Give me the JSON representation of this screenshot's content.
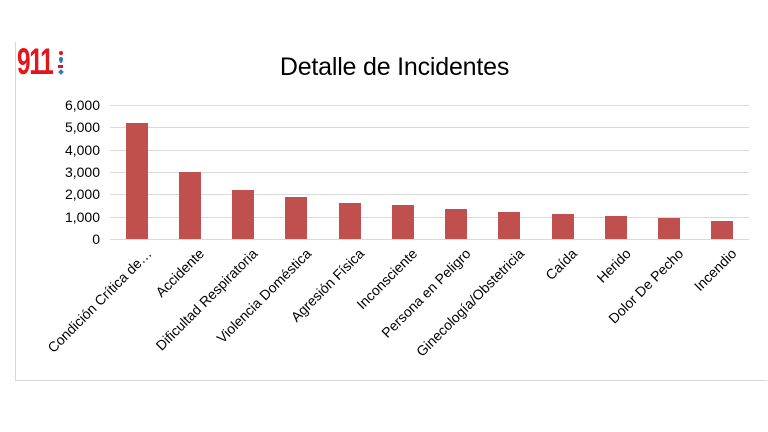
{
  "logo": {
    "text": "911",
    "color": "#e4161c",
    "icons": [
      "red-dot",
      "blue-drop",
      "red-mark",
      "blue-diamond"
    ]
  },
  "chart_data": {
    "type": "bar",
    "title": "Detalle de Incidentes",
    "categories": [
      "Condición Crítica de…",
      "Accidente",
      "Dificultad Respiratoria",
      "Violencia Doméstica",
      "Agresión Física",
      "Inconsciente",
      "Persona en Peligro",
      "Ginecología/Obstetricia",
      "Caída",
      "Herido",
      "Dolor De Pecho",
      "Incendio"
    ],
    "values": [
      5200,
      3000,
      2200,
      1900,
      1600,
      1500,
      1350,
      1200,
      1100,
      1050,
      950,
      800
    ],
    "xlabel": "",
    "ylabel": "",
    "ylim": [
      0,
      6000
    ],
    "ytick_step": 1000,
    "ytick_labels": [
      "0",
      "1,000",
      "2,000",
      "3,000",
      "4,000",
      "5,000",
      "6,000"
    ],
    "legend": "none",
    "grid": true,
    "bar_color": "#c0504d",
    "gridline_color": "#d9d9d9",
    "axis_text_color": "#000000"
  }
}
